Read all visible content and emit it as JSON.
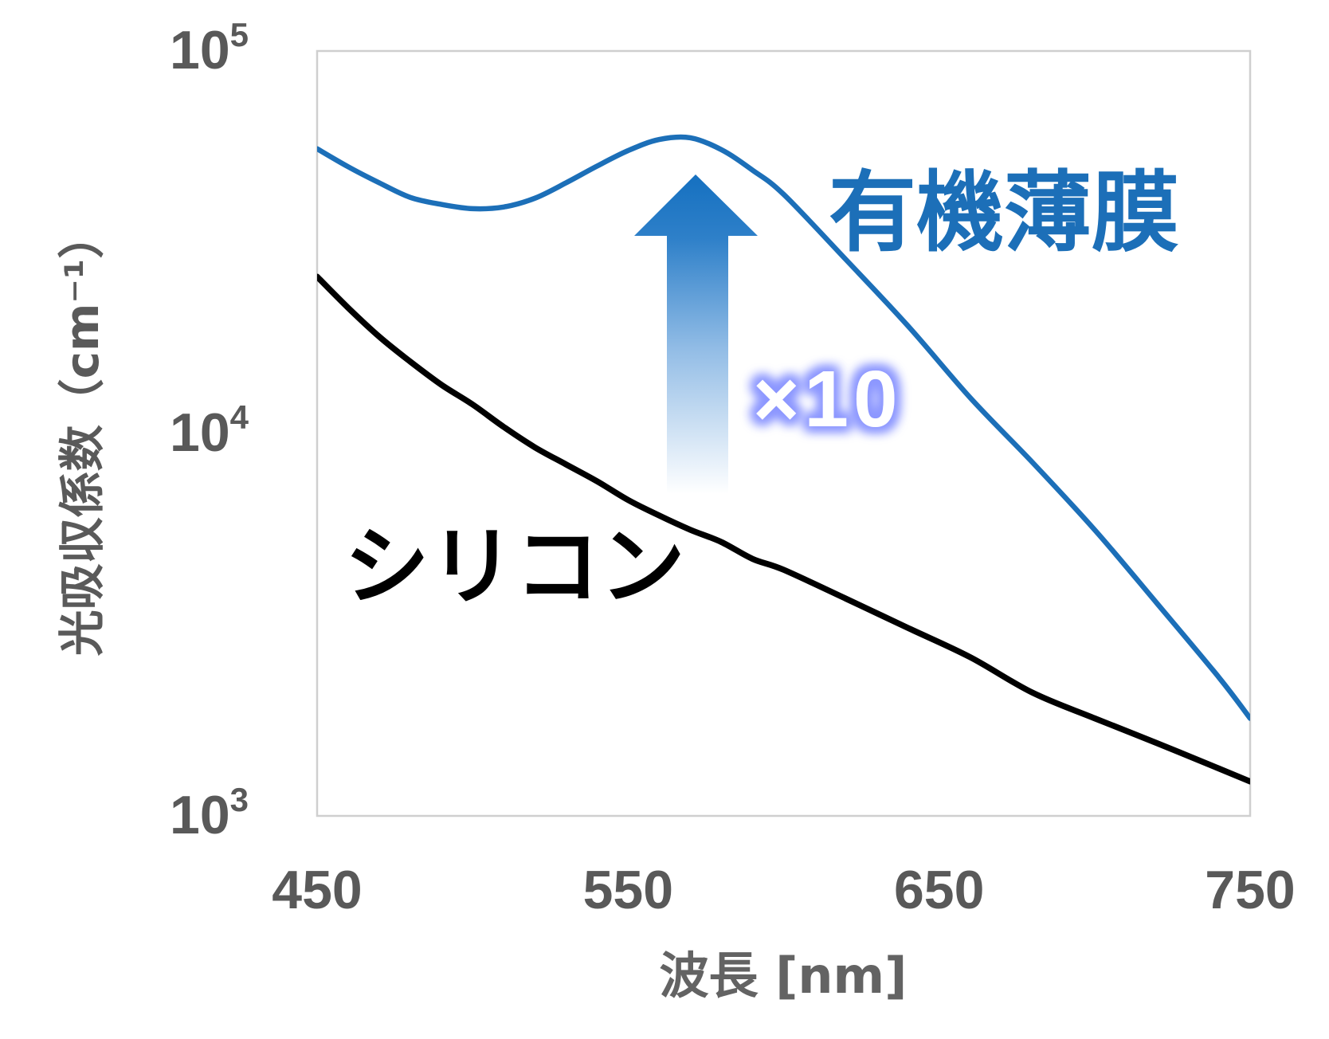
{
  "chart_data": {
    "type": "line",
    "xlabel": "波長 [nm]",
    "ylabel": "光吸収係数（cm⁻¹）",
    "xlim": [
      450,
      750
    ],
    "ylim": [
      1000,
      100000
    ],
    "yscale": "log",
    "grid": false,
    "xticks": [
      {
        "value": 450,
        "label": "450"
      },
      {
        "value": 550,
        "label": "550"
      },
      {
        "value": 650,
        "label": "650"
      },
      {
        "value": 750,
        "label": "750"
      }
    ],
    "yticks": [
      {
        "value": 100000,
        "base": "10",
        "exp": "5"
      },
      {
        "value": 10000,
        "base": "10",
        "exp": "4"
      },
      {
        "value": 1000,
        "base": "10",
        "exp": "3"
      }
    ],
    "x": [
      450,
      460,
      470,
      480,
      490,
      500,
      510,
      520,
      530,
      540,
      550,
      560,
      570,
      580,
      590,
      600,
      620,
      640,
      660,
      680,
      700,
      720,
      740,
      750
    ],
    "series": [
      {
        "name": "有機薄膜",
        "color": "#1c6fb8",
        "values": [
          55500,
          49800,
          45200,
          41400,
          39700,
          38700,
          39100,
          41200,
          45200,
          50000,
          54900,
          58700,
          59300,
          55200,
          48800,
          42200,
          28500,
          19100,
          12400,
          8400,
          5600,
          3600,
          2300,
          1800
        ]
      },
      {
        "name": "シリコン",
        "color": "#000000",
        "values": [
          25700,
          21300,
          17900,
          15400,
          13400,
          11900,
          10400,
          9200,
          8300,
          7500,
          6700,
          6100,
          5600,
          5200,
          4700,
          4400,
          3700,
          3100,
          2600,
          2100,
          1800,
          1550,
          1330,
          1230
        ]
      }
    ],
    "annotations": [
      {
        "text": "×10",
        "icon": "up-arrow-icon",
        "color": "#8c97ff"
      }
    ]
  }
}
